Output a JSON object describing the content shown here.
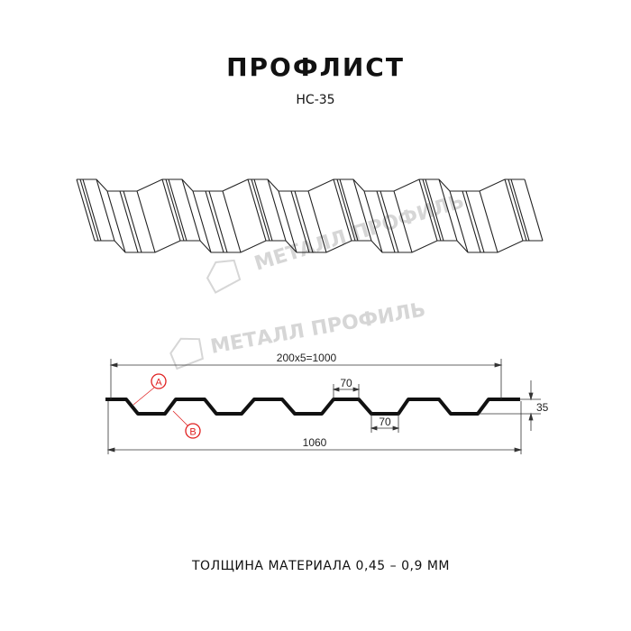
{
  "header": {
    "title": "ПРОФЛИСТ",
    "subtitle": "НС-35"
  },
  "watermark": "МЕТАЛЛ ПРОФИЛЬ",
  "drawing": {
    "dim_pitch": "200x5=1000",
    "dim_total": "1060",
    "dim_top_flat": "70",
    "dim_bottom_flat": "70",
    "dim_height": "35",
    "marker_a": "A",
    "marker_b": "B"
  },
  "colors": {
    "line": "#111111",
    "marker": "#e02020",
    "watermark": "#d6d6d6"
  },
  "footer": {
    "thickness": "ТОЛЩИНА МАТЕРИАЛА 0,45 – 0,9 ММ"
  }
}
